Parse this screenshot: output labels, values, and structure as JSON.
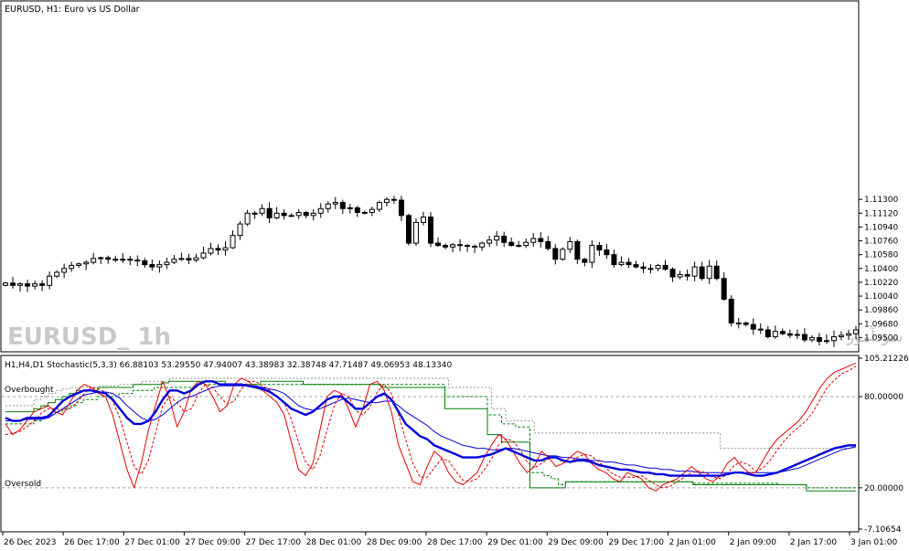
{
  "symbol_title": "EURUSD, H1:  Euro vs US Dollar",
  "watermark": "EURUSD_  1h",
  "watermark_site": "انتشار در سایت سودآموز",
  "indicator_title": "H1,H4,D1 Stochastic(5,3,3) 66.88103 53.29550 47.94007 43.38983 32.38748 47.71487 49.06953 48.13340",
  "level_labels": {
    "overbought": "Overbought",
    "oversold": "Oversold"
  },
  "colors": {
    "background": "#ffffff",
    "border": "#000000",
    "bull_body": "#ffffff",
    "bear_body": "#000000",
    "h1_main": "#e00000",
    "h1_signal": "#e00000",
    "h4_main": "#0000dd",
    "h4_signal": "#0000dd",
    "d1_main": "#008000",
    "d1_signal": "#008000",
    "level_line": "#a0a0a0",
    "extra_line": "#909090"
  },
  "chart_data": [
    {
      "type": "candlestick",
      "ylim": [
        1.0935,
        1.1385
      ],
      "y_ticks": [
        1.113,
        1.1112,
        1.1094,
        1.1076,
        1.1058,
        1.104,
        1.1022,
        1.1004,
        1.0986,
        1.0968,
        1.095
      ],
      "y_tick_labels": [
        "1.11300",
        "1.11120",
        "1.10940",
        "1.10760",
        "1.10580",
        "1.10400",
        "1.10220",
        "1.10040",
        "1.09860",
        "1.09680",
        "1.09500"
      ],
      "close": [
        1.1021,
        1.1018,
        1.102,
        1.1017,
        1.102,
        1.1018,
        1.103,
        1.1035,
        1.104,
        1.1044,
        1.1046,
        1.1048,
        1.1053,
        1.1054,
        1.1052,
        1.1052,
        1.1052,
        1.1051,
        1.105,
        1.1045,
        1.1042,
        1.1045,
        1.1048,
        1.1052,
        1.1053,
        1.1051,
        1.1054,
        1.106,
        1.1066,
        1.1064,
        1.1067,
        1.1083,
        1.1098,
        1.1112,
        1.1112,
        1.1118,
        1.1106,
        1.1112,
        1.1109,
        1.1109,
        1.1113,
        1.1109,
        1.1112,
        1.1118,
        1.1124,
        1.1126,
        1.1118,
        1.1119,
        1.1113,
        1.1113,
        1.1117,
        1.1126,
        1.113,
        1.1129,
        1.1109,
        1.1073,
        1.11,
        1.1107,
        1.1073,
        1.107,
        1.1068,
        1.1071,
        1.107,
        1.1069,
        1.1068,
        1.1073,
        1.1077,
        1.1082,
        1.1074,
        1.107,
        1.107,
        1.1074,
        1.1079,
        1.1075,
        1.1066,
        1.1052,
        1.1065,
        1.1075,
        1.1052,
        1.1048,
        1.107,
        1.1064,
        1.1058,
        1.1045,
        1.1048,
        1.1045,
        1.1042,
        1.104,
        1.104,
        1.1044,
        1.1039,
        1.1029,
        1.1032,
        1.103,
        1.1042,
        1.1027,
        1.1043,
        1.1027,
        1.1,
        1.0969,
        1.0969,
        1.0967,
        1.0961,
        1.096,
        1.0951,
        1.0958,
        1.0955,
        1.0953,
        1.0954,
        1.0947,
        1.095,
        1.0945,
        1.0946,
        1.0951,
        1.0953,
        1.0955,
        1.096
      ]
    },
    {
      "type": "line",
      "ylim": [
        -7.10654,
        105.21226
      ],
      "y_ticks": [
        105.21226,
        80.0,
        20.0,
        -7.10654
      ],
      "y_tick_labels": [
        "105.21226",
        "80.00000",
        "20.00000",
        "-7.10654"
      ],
      "levels": {
        "overbought": 80,
        "oversold": 20
      },
      "x_tick_labels": [
        "26 Dec 2023",
        "26 Dec 17:00",
        "27 Dec 01:00",
        "27 Dec 09:00",
        "27 Dec 17:00",
        "28 Dec 01:00",
        "28 Dec 09:00",
        "28 Dec 17:00",
        "29 Dec 01:00",
        "29 Dec 09:00",
        "29 Dec 17:00",
        "2 Jan 01:00",
        "2 Jan 09:00",
        "2 Jan 17:00",
        "3 Jan 01:00"
      ],
      "series": [
        {
          "name": "H1 main",
          "values": [
            62,
            55,
            58,
            64,
            70,
            72,
            74,
            70,
            68,
            76,
            84,
            88,
            86,
            82,
            80,
            68,
            50,
            32,
            20,
            36,
            58,
            74,
            90,
            78,
            60,
            70,
            85,
            90,
            88,
            80,
            70,
            74,
            88,
            92,
            90,
            86,
            84,
            80,
            76,
            68,
            50,
            32,
            28,
            36,
            58,
            80,
            84,
            82,
            72,
            60,
            72,
            88,
            90,
            84,
            70,
            48,
            36,
            24,
            22,
            34,
            44,
            40,
            30,
            24,
            22,
            26,
            30,
            40,
            48,
            55,
            52,
            44,
            36,
            30,
            34,
            44,
            40,
            34,
            36,
            40,
            44,
            42,
            36,
            32,
            30,
            26,
            24,
            30,
            28,
            26,
            20,
            18,
            22,
            24,
            26,
            30,
            34,
            30,
            26,
            24,
            28,
            36,
            40,
            34,
            30,
            30,
            38,
            46,
            52,
            56,
            60,
            64,
            70,
            78,
            86,
            92,
            96,
            98,
            100,
            102
          ]
        },
        {
          "name": "H1 signal",
          "values": [
            55,
            56,
            57,
            60,
            64,
            69,
            72,
            72,
            71,
            72,
            76,
            82,
            86,
            85,
            83,
            77,
            66,
            50,
            34,
            29,
            38,
            56,
            74,
            80,
            76,
            70,
            72,
            82,
            88,
            86,
            80,
            75,
            77,
            85,
            90,
            90,
            87,
            84,
            80,
            76,
            65,
            50,
            37,
            32,
            41,
            58,
            74,
            82,
            80,
            71,
            68,
            73,
            83,
            88,
            82,
            68,
            52,
            36,
            27,
            27,
            33,
            39,
            38,
            31,
            25,
            24,
            26,
            32,
            39,
            48,
            52,
            51,
            45,
            37,
            33,
            36,
            39,
            40,
            37,
            37,
            40,
            42,
            41,
            37,
            33,
            29,
            27,
            27,
            27,
            28,
            25,
            22,
            20,
            21,
            24,
            27,
            30,
            31,
            30,
            27,
            26,
            29,
            35,
            37,
            35,
            31,
            33,
            38,
            45,
            51,
            56,
            60,
            64,
            70,
            78,
            86,
            91,
            95,
            97,
            100
          ]
        },
        {
          "name": "H4 main",
          "values": [
            66,
            64,
            64,
            66,
            66,
            66,
            67,
            72,
            77,
            80,
            82,
            84,
            84,
            83,
            82,
            78,
            72,
            66,
            62,
            62,
            64,
            70,
            78,
            84,
            84,
            82,
            84,
            88,
            90,
            90,
            88,
            88,
            88,
            88,
            87,
            86,
            85,
            83,
            80,
            76,
            72,
            70,
            68,
            70,
            74,
            78,
            80,
            80,
            76,
            72,
            72,
            76,
            80,
            82,
            78,
            70,
            62,
            58,
            54,
            52,
            48,
            46,
            44,
            42,
            40,
            40,
            40,
            41,
            42,
            44,
            46,
            44,
            42,
            40,
            38,
            38,
            40,
            40,
            38,
            37,
            38,
            38,
            37,
            35,
            34,
            33,
            32,
            32,
            31,
            30,
            30,
            29,
            29,
            28,
            28,
            28,
            28,
            28,
            28,
            28,
            28,
            29,
            30,
            30,
            29,
            28,
            28,
            29,
            30,
            32,
            34,
            36,
            38,
            40,
            42,
            44,
            46,
            47,
            48,
            48
          ]
        },
        {
          "name": "H4 signal",
          "values": [
            64,
            64,
            64,
            65,
            65,
            65,
            66,
            69,
            72,
            75,
            78,
            81,
            82,
            83,
            83,
            82,
            79,
            74,
            70,
            66,
            64,
            65,
            68,
            72,
            76,
            79,
            80,
            82,
            84,
            86,
            87,
            87,
            87,
            87,
            87,
            87,
            86,
            85,
            84,
            82,
            78,
            74,
            72,
            71,
            72,
            74,
            76,
            78,
            79,
            78,
            77,
            76,
            76,
            77,
            77,
            74,
            70,
            67,
            64,
            61,
            57,
            54,
            52,
            50,
            48,
            47,
            46,
            46,
            45,
            45,
            46,
            46,
            45,
            44,
            43,
            42,
            41,
            41,
            40,
            40,
            39,
            39,
            38,
            38,
            37,
            37,
            36,
            35,
            35,
            34,
            33,
            33,
            32,
            32,
            31,
            31,
            31,
            30,
            30,
            30,
            30,
            30,
            30,
            30,
            30,
            30,
            30,
            30,
            30,
            31,
            32,
            33,
            35,
            37,
            39,
            41,
            43,
            45,
            46,
            47
          ]
        },
        {
          "name": "D1 main",
          "values": [
            70,
            70,
            70,
            70,
            72,
            74,
            76,
            78,
            80,
            82,
            84,
            84,
            84,
            86,
            86,
            86,
            86,
            86,
            88,
            88,
            88,
            88,
            89,
            90,
            90,
            90,
            90,
            90,
            90,
            90,
            90,
            88,
            88,
            88,
            88,
            88,
            90,
            90,
            90,
            90,
            90,
            90,
            88,
            88,
            88,
            88,
            88,
            88,
            88,
            88,
            88,
            88,
            88,
            86,
            86,
            86,
            86,
            86,
            86,
            86,
            86,
            86,
            72,
            72,
            72,
            72,
            72,
            72,
            55,
            55,
            50,
            50,
            50,
            50,
            20,
            20,
            20,
            20,
            20,
            24,
            24,
            24,
            24,
            24,
            24,
            24,
            24,
            24,
            24,
            24,
            24,
            24,
            24,
            24,
            24,
            24,
            24,
            22,
            22,
            22,
            22,
            22,
            22,
            22,
            22,
            22,
            22,
            22,
            22,
            22,
            22,
            22,
            22,
            18,
            18,
            18,
            18,
            18,
            18,
            18,
            18
          ]
        },
        {
          "name": "D1 signal",
          "values": [
            62,
            62,
            62,
            62,
            64,
            66,
            68,
            70,
            72,
            74,
            76,
            78,
            78,
            80,
            80,
            80,
            82,
            82,
            84,
            84,
            84,
            86,
            86,
            86,
            86,
            86,
            86,
            88,
            88,
            88,
            88,
            88,
            88,
            88,
            88,
            88,
            88,
            88,
            88,
            88,
            88,
            88,
            88,
            88,
            88,
            88,
            88,
            88,
            88,
            88,
            88,
            88,
            88,
            88,
            88,
            88,
            88,
            88,
            88,
            88,
            88,
            88,
            80,
            80,
            80,
            80,
            80,
            80,
            68,
            68,
            62,
            62,
            60,
            60,
            30,
            30,
            28,
            26,
            22,
            24,
            24,
            24,
            24,
            24,
            24,
            24,
            24,
            24,
            24,
            24,
            24,
            24,
            24,
            24,
            24,
            24,
            24,
            23,
            23,
            23,
            23,
            23,
            23,
            23,
            23,
            23,
            23,
            23,
            23,
            22,
            22,
            22,
            22,
            20,
            20,
            20,
            20,
            20,
            20,
            20,
            20
          ]
        },
        {
          "name": "extra",
          "values": [
            74,
            74,
            74,
            74,
            78,
            80,
            82,
            84,
            85,
            86,
            86,
            86,
            86,
            87,
            87,
            87,
            88,
            88,
            88,
            90,
            90,
            90,
            90,
            92,
            92,
            92,
            92,
            92,
            92,
            92,
            92,
            92,
            92,
            92,
            92,
            92,
            92,
            92,
            92,
            92,
            92,
            92,
            92,
            92,
            92,
            92,
            92,
            92,
            92,
            92,
            92,
            92,
            92,
            92,
            92,
            92,
            92,
            92,
            92,
            92,
            92,
            92,
            86,
            86,
            86,
            86,
            86,
            86,
            72,
            72,
            64,
            64,
            64,
            64,
            56,
            56,
            56,
            56,
            56,
            56,
            56,
            56,
            56,
            56,
            56,
            56,
            56,
            56,
            56,
            56,
            56,
            56,
            56,
            56,
            56,
            56,
            56,
            56,
            56,
            56,
            46,
            46,
            46,
            46,
            46,
            46,
            46,
            46,
            46,
            46,
            46,
            46,
            46,
            46,
            46,
            46,
            46,
            46,
            46,
            46
          ]
        }
      ]
    }
  ]
}
